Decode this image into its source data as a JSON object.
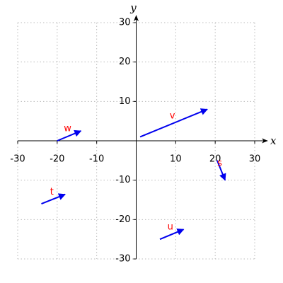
{
  "chart_data": {
    "type": "vector",
    "x_label": "x",
    "y_label": "y",
    "xlim": [
      -30,
      30
    ],
    "ylim": [
      -30,
      30
    ],
    "xticks": [
      -30,
      -20,
      -10,
      10,
      20,
      30
    ],
    "yticks": [
      -30,
      -20,
      -10,
      10,
      20,
      30
    ],
    "grid": true,
    "color": "#0000ee",
    "label_color": "#ff0000",
    "vectors": [
      {
        "name": "v",
        "x0": 1,
        "y0": 1,
        "x1": 18,
        "y1": 8
      },
      {
        "name": "w",
        "x0": -20,
        "y0": 0,
        "x1": -14,
        "y1": 2.5
      },
      {
        "name": "t",
        "x0": -24,
        "y0": -16,
        "x1": -18,
        "y1": -13.6
      },
      {
        "name": "u",
        "x0": 6,
        "y0": -25,
        "x1": 12,
        "y1": -22.5
      },
      {
        "name": "s",
        "x0": 20.5,
        "y0": -5,
        "x1": 22.5,
        "y1": -10
      }
    ]
  }
}
